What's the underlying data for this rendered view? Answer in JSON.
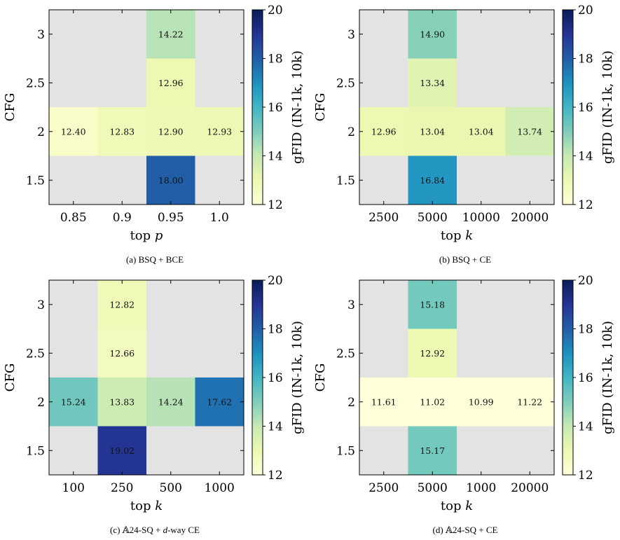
{
  "colormap": {
    "stops": [
      "#ffffd9",
      "#edf8b1",
      "#c7e9b4",
      "#7fcdbb",
      "#41b6c4",
      "#1d91c0",
      "#225ea8",
      "#253494",
      "#081d58"
    ],
    "missing": "#e3e3e3"
  },
  "chart_data": [
    {
      "type": "heatmap",
      "caption": "(a) BSQ + BCE",
      "xlabel": "top p",
      "ylabel": "CFG",
      "x_categories": [
        "0.85",
        "0.9",
        "0.95",
        "1.0"
      ],
      "y_categories": [
        "3",
        "2.5",
        "2",
        "1.5"
      ],
      "cells": [
        {
          "x": "0.95",
          "y": "3",
          "value": 14.22
        },
        {
          "x": "0.95",
          "y": "2.5",
          "value": 12.96
        },
        {
          "x": "0.85",
          "y": "2",
          "value": 12.4
        },
        {
          "x": "0.9",
          "y": "2",
          "value": 12.83
        },
        {
          "x": "0.95",
          "y": "2",
          "value": 12.9
        },
        {
          "x": "1.0",
          "y": "2",
          "value": 12.93
        },
        {
          "x": "0.95",
          "y": "1.5",
          "value": 18.0
        }
      ],
      "colorbar": {
        "label": "gFID (IN-1k, 10k)",
        "range": [
          12,
          20
        ],
        "ticks": [
          "12",
          "14",
          "16",
          "18",
          "20"
        ]
      }
    },
    {
      "type": "heatmap",
      "caption": "(b) BSQ + CE",
      "xlabel": "top k",
      "ylabel": "CFG",
      "x_categories": [
        "2500",
        "5000",
        "10000",
        "20000"
      ],
      "y_categories": [
        "3",
        "2.5",
        "2",
        "1.5"
      ],
      "cells": [
        {
          "x": "5000",
          "y": "3",
          "value": 14.9
        },
        {
          "x": "5000",
          "y": "2.5",
          "value": 13.34
        },
        {
          "x": "2500",
          "y": "2",
          "value": 12.96
        },
        {
          "x": "5000",
          "y": "2",
          "value": 13.04
        },
        {
          "x": "10000",
          "y": "2",
          "value": 13.04
        },
        {
          "x": "20000",
          "y": "2",
          "value": 13.74
        },
        {
          "x": "5000",
          "y": "1.5",
          "value": 16.84
        }
      ],
      "colorbar": {
        "label": "gFID (IN-1k, 10k)",
        "range": [
          12,
          20
        ],
        "ticks": [
          "12",
          "14",
          "16",
          "18",
          "20"
        ]
      }
    },
    {
      "type": "heatmap",
      "caption": "(c) 𝔸24-SQ + d-way CE",
      "xlabel": "top k",
      "ylabel": "CFG",
      "x_categories": [
        "100",
        "250",
        "500",
        "1000"
      ],
      "y_categories": [
        "3",
        "2.5",
        "2",
        "1.5"
      ],
      "cells": [
        {
          "x": "250",
          "y": "3",
          "value": 12.82
        },
        {
          "x": "250",
          "y": "2.5",
          "value": 12.66
        },
        {
          "x": "100",
          "y": "2",
          "value": 15.24
        },
        {
          "x": "250",
          "y": "2",
          "value": 13.83
        },
        {
          "x": "500",
          "y": "2",
          "value": 14.24
        },
        {
          "x": "1000",
          "y": "2",
          "value": 17.62
        },
        {
          "x": "250",
          "y": "1.5",
          "value": 19.02
        }
      ],
      "colorbar": {
        "label": "gFID (IN-1k, 10k)",
        "range": [
          12,
          20
        ],
        "ticks": [
          "12",
          "14",
          "16",
          "18",
          "20"
        ]
      }
    },
    {
      "type": "heatmap",
      "caption": "(d) 𝔸24-SQ + CE",
      "xlabel": "top k",
      "ylabel": "CFG",
      "x_categories": [
        "2500",
        "5000",
        "1000",
        "20000"
      ],
      "y_categories": [
        "3",
        "2.5",
        "2",
        "1.5"
      ],
      "cells": [
        {
          "x": "5000",
          "y": "3",
          "value": 15.18
        },
        {
          "x": "5000",
          "y": "2.5",
          "value": 12.92
        },
        {
          "x": "2500",
          "y": "2",
          "value": 11.61
        },
        {
          "x": "5000",
          "y": "2",
          "value": 11.02
        },
        {
          "x": "1000",
          "y": "2",
          "value": 10.99
        },
        {
          "x": "20000",
          "y": "2",
          "value": 11.22
        },
        {
          "x": "5000",
          "y": "1.5",
          "value": 15.17
        }
      ],
      "colorbar": {
        "label": "gFID (IN-1k, 10k)",
        "range": [
          12,
          20
        ],
        "ticks": [
          "12",
          "14",
          "16",
          "18",
          "20"
        ]
      }
    }
  ]
}
